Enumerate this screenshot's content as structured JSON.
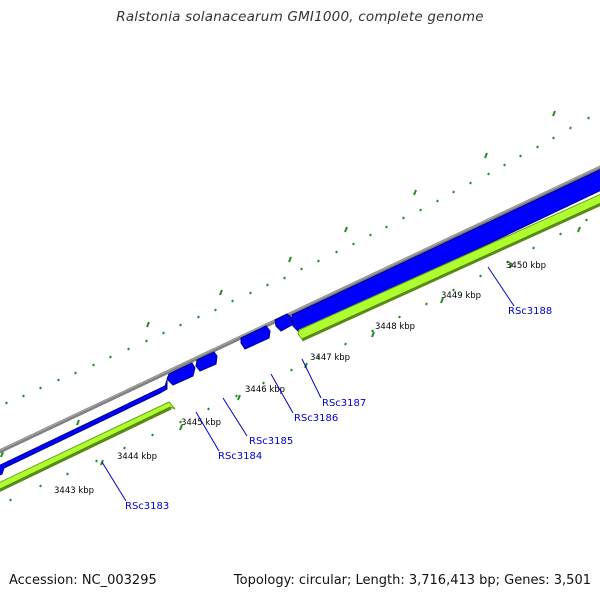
{
  "title": "Ralstonia solanacearum GMI1000, complete genome",
  "footer": {
    "accession": "Accession: NC_003295",
    "summary": "Topology: circular; Length: 3,716,413 bp; Genes: 3,501"
  },
  "colors": {
    "backbone": "#808080",
    "forward_cds": "#0000ff",
    "forward_cds_edge": "#00008b",
    "reverse_cds": "#adff2f",
    "reverse_cds_edge": "#6b9e1a",
    "tick_dots": "#228b22",
    "gene_label": "#0000cc",
    "ruler_label": "#000000"
  },
  "ruler": {
    "unit": "kbp",
    "labels": [
      "3443 kbp",
      "3444 kbp",
      "3445 kbp",
      "3446 kbp",
      "3447 kbp",
      "3448 kbp",
      "3449 kbp",
      "3450 kbp"
    ]
  },
  "genes": [
    {
      "label": "RSc3183",
      "strand": "reverse"
    },
    {
      "label": "RSc3184",
      "strand": "forward"
    },
    {
      "label": "RSc3185",
      "strand": "forward"
    },
    {
      "label": "RSc3186",
      "strand": "forward"
    },
    {
      "label": "RSc3187",
      "strand": "forward"
    },
    {
      "label": "RSc3188",
      "strand": "reverse"
    }
  ]
}
